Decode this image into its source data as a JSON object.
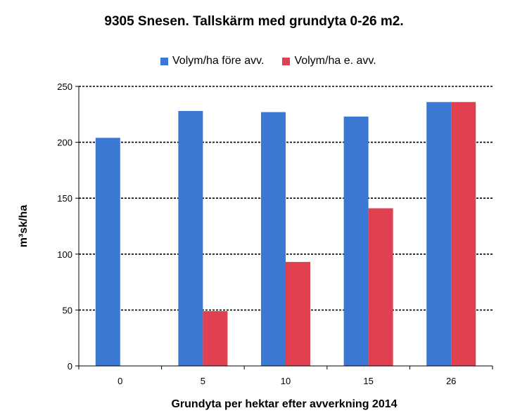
{
  "chart_data": {
    "type": "bar",
    "title": "9305 Snesen. Tallskärm med  grundyta 0-26 m2.",
    "xlabel": "Grundyta per hektar efter avverkning 2014",
    "ylabel": "m³sk/ha",
    "categories": [
      "0",
      "5",
      "10",
      "15",
      "26"
    ],
    "series": [
      {
        "name": "Volym/ha före avv.",
        "color": "#3b78d4",
        "values": [
          204,
          228,
          227,
          223,
          236
        ]
      },
      {
        "name": "Volym/ha e. avv.",
        "color": "#e0404f",
        "values": [
          0,
          49,
          93,
          141,
          236
        ]
      }
    ],
    "ylim": [
      0,
      250
    ],
    "yticks": [
      0,
      50,
      100,
      150,
      200,
      250
    ],
    "grid": "horizontal dashed",
    "legend_position": "top"
  }
}
